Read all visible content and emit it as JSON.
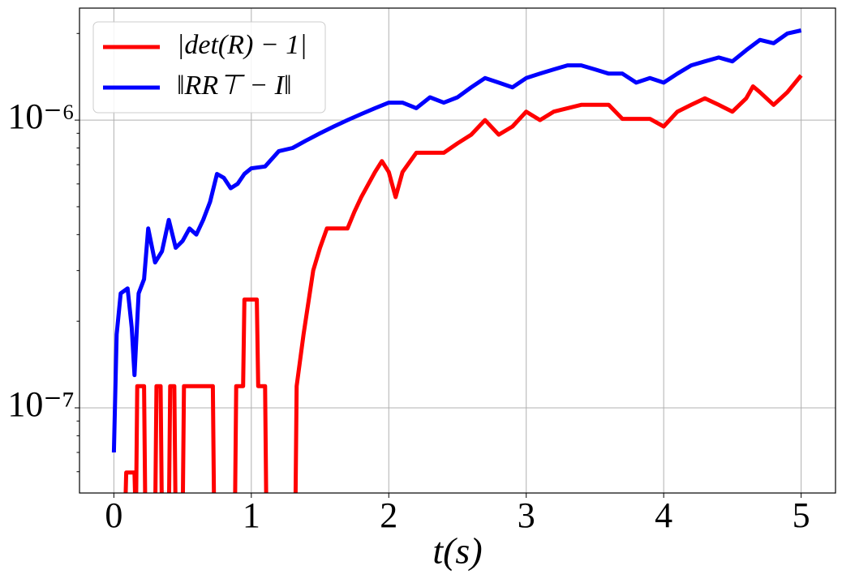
{
  "chart_data": {
    "type": "line",
    "xlabel": "t(s)",
    "xlim": [
      -0.25,
      5.25
    ],
    "xticks": [
      0,
      1,
      2,
      3,
      4,
      5
    ],
    "ylim": [
      5.06e-08,
      2.45e-06
    ],
    "log_y": true,
    "grid": true,
    "legend": "upper left",
    "yticks": [
      {
        "value": 1e-07,
        "label": "10⁻⁷"
      },
      {
        "value": 1e-06,
        "label": "10⁻⁶"
      }
    ],
    "yminorticks": [
      6e-08,
      7e-08,
      8e-08,
      9e-08,
      2e-07,
      3e-07,
      4e-07,
      5e-07,
      6e-07,
      7e-07,
      8e-07,
      9e-07,
      2e-06
    ],
    "series": [
      {
        "name": "|det(R) − 1|",
        "color": "#ff0000",
        "x": [
          0,
          0.08,
          0.09,
          0.15,
          0.16,
          0.17,
          0.22,
          0.23,
          0.3,
          0.31,
          0.34,
          0.35,
          0.4,
          0.41,
          0.44,
          0.45,
          0.5,
          0.51,
          0.54,
          0.55,
          0.72,
          0.73,
          0.88,
          0.89,
          0.94,
          0.95,
          1.04,
          1.05,
          1.1,
          1.11,
          1.16,
          1.17,
          1.32,
          1.33,
          1.38,
          1.45,
          1.5,
          1.55,
          1.7,
          1.75,
          1.8,
          1.9,
          1.95,
          2.0,
          2.05,
          2.1,
          2.2,
          2.4,
          2.5,
          2.6,
          2.7,
          2.8,
          2.9,
          3.0,
          3.1,
          3.2,
          3.4,
          3.6,
          3.7,
          3.8,
          3.9,
          4.0,
          4.1,
          4.2,
          4.3,
          4.4,
          4.5,
          4.6,
          4.65,
          4.7,
          4.8,
          4.9,
          5.0
        ],
        "values": [
          0,
          0,
          5.96e-08,
          5.96e-08,
          0,
          1.19e-07,
          1.19e-07,
          0,
          0,
          1.19e-07,
          1.19e-07,
          0,
          0,
          1.19e-07,
          1.19e-07,
          0,
          0,
          1.19e-07,
          1.19e-07,
          1.19e-07,
          1.19e-07,
          0,
          0,
          1.19e-07,
          1.19e-07,
          2.38e-07,
          2.38e-07,
          1.19e-07,
          1.19e-07,
          0,
          0,
          0,
          0,
          1.19e-07,
          1.8e-07,
          3e-07,
          3.6e-07,
          4.2e-07,
          4.2e-07,
          4.8e-07,
          5.4e-07,
          6.6e-07,
          7.2e-07,
          6.6e-07,
          5.4e-07,
          6.6e-07,
          7.7e-07,
          7.7e-07,
          8.3e-07,
          8.9e-07,
          1e-06,
          8.9e-07,
          9.5e-07,
          1.07e-06,
          1e-06,
          1.07e-06,
          1.13e-06,
          1.13e-06,
          1.01e-06,
          1.01e-06,
          1.01e-06,
          9.5e-07,
          1.07e-06,
          1.13e-06,
          1.19e-06,
          1.13e-06,
          1.07e-06,
          1.19e-06,
          1.31e-06,
          1.25e-06,
          1.13e-06,
          1.25e-06,
          1.43e-06
        ]
      },
      {
        "name": "‖RR⊤ − I‖",
        "color": "#0000ff",
        "x": [
          0,
          0.02,
          0.05,
          0.1,
          0.13,
          0.15,
          0.18,
          0.22,
          0.25,
          0.3,
          0.35,
          0.4,
          0.45,
          0.5,
          0.55,
          0.6,
          0.65,
          0.7,
          0.75,
          0.8,
          0.85,
          0.9,
          0.95,
          1.0,
          1.1,
          1.2,
          1.3,
          1.4,
          1.5,
          1.6,
          1.7,
          1.8,
          1.9,
          2.0,
          2.1,
          2.2,
          2.3,
          2.4,
          2.5,
          2.6,
          2.7,
          2.8,
          2.9,
          3.0,
          3.1,
          3.2,
          3.3,
          3.4,
          3.5,
          3.6,
          3.7,
          3.8,
          3.9,
          4.0,
          4.1,
          4.2,
          4.3,
          4.4,
          4.5,
          4.6,
          4.7,
          4.8,
          4.9,
          5.0
        ],
        "values": [
          7e-08,
          1.8e-07,
          2.5e-07,
          2.6e-07,
          1.9e-07,
          1.3e-07,
          2.5e-07,
          2.8e-07,
          4.2e-07,
          3.2e-07,
          3.5e-07,
          4.5e-07,
          3.6e-07,
          3.8e-07,
          4.2e-07,
          4e-07,
          4.5e-07,
          5.2e-07,
          6.5e-07,
          6.3e-07,
          5.8e-07,
          6e-07,
          6.5e-07,
          6.8e-07,
          6.9e-07,
          7.8e-07,
          8e-07,
          8.5e-07,
          9e-07,
          9.5e-07,
          1e-06,
          1.05e-06,
          1.1e-06,
          1.15e-06,
          1.15e-06,
          1.1e-06,
          1.2e-06,
          1.15e-06,
          1.2e-06,
          1.3e-06,
          1.4e-06,
          1.35e-06,
          1.3e-06,
          1.4e-06,
          1.45e-06,
          1.5e-06,
          1.55e-06,
          1.55e-06,
          1.5e-06,
          1.45e-06,
          1.45e-06,
          1.35e-06,
          1.4e-06,
          1.35e-06,
          1.45e-06,
          1.55e-06,
          1.6e-06,
          1.65e-06,
          1.6e-06,
          1.75e-06,
          1.9e-06,
          1.85e-06,
          2e-06,
          2.05e-06
        ]
      }
    ]
  }
}
